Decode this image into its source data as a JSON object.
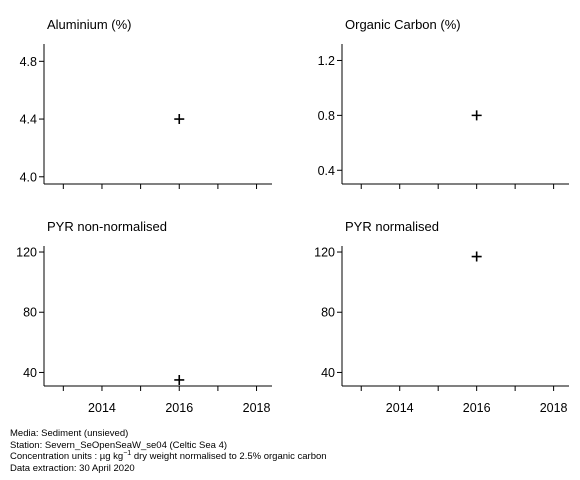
{
  "chart_data": [
    {
      "type": "scatter",
      "title": "Aluminium (%)",
      "x": [
        2016
      ],
      "y": [
        4.4
      ],
      "ylim": [
        3.95,
        4.92
      ],
      "yticks": [
        4.0,
        4.4,
        4.8
      ],
      "ytick_labels": [
        "4.0",
        "4.4",
        "4.8"
      ],
      "xlim": [
        2012.5,
        2018.4
      ],
      "xticks": [
        2013,
        2014,
        2015,
        2016,
        2017,
        2018
      ],
      "xtick_labels": [],
      "marker": "+",
      "grid": false
    },
    {
      "type": "scatter",
      "title": "Organic Carbon (%)",
      "x": [
        2016
      ],
      "y": [
        0.8
      ],
      "ylim": [
        0.3,
        1.32
      ],
      "yticks": [
        0.4,
        0.8,
        1.2
      ],
      "ytick_labels": [
        "0.4",
        "0.8",
        "1.2"
      ],
      "xlim": [
        2012.5,
        2018.4
      ],
      "xticks": [
        2013,
        2014,
        2015,
        2016,
        2017,
        2018
      ],
      "xtick_labels": [],
      "marker": "+",
      "grid": false
    },
    {
      "type": "scatter",
      "title": "PYR non-normalised",
      "x": [
        2016
      ],
      "y": [
        35
      ],
      "ylim": [
        31,
        124
      ],
      "yticks": [
        40,
        80,
        120
      ],
      "ytick_labels": [
        "40",
        "80",
        "120"
      ],
      "xlim": [
        2012.5,
        2018.4
      ],
      "xticks": [
        2013,
        2014,
        2015,
        2016,
        2017,
        2018
      ],
      "xtick_labels": [
        "2014",
        "2016",
        "2018"
      ],
      "marker": "+",
      "grid": false
    },
    {
      "type": "scatter",
      "title": "PYR normalised",
      "x": [
        2016
      ],
      "y": [
        117
      ],
      "ylim": [
        31,
        124
      ],
      "yticks": [
        40,
        80,
        120
      ],
      "ytick_labels": [
        "40",
        "80",
        "120"
      ],
      "xlim": [
        2012.5,
        2018.4
      ],
      "xticks": [
        2013,
        2014,
        2015,
        2016,
        2017,
        2018
      ],
      "xtick_labels": [
        "2014",
        "2016",
        "2018"
      ],
      "marker": "+",
      "grid": false
    }
  ],
  "footer": {
    "media": "Media: Sediment (unsieved)",
    "station": "Station: Severn_SeOpenSeaW_se04 (Celtic Sea 4)",
    "units_prefix": "Concentration units : µg kg",
    "units_exponent": "−1",
    "units_suffix": " dry weight normalised to 2.5% organic carbon",
    "extraction": "Data extraction: 30 April 2020"
  }
}
